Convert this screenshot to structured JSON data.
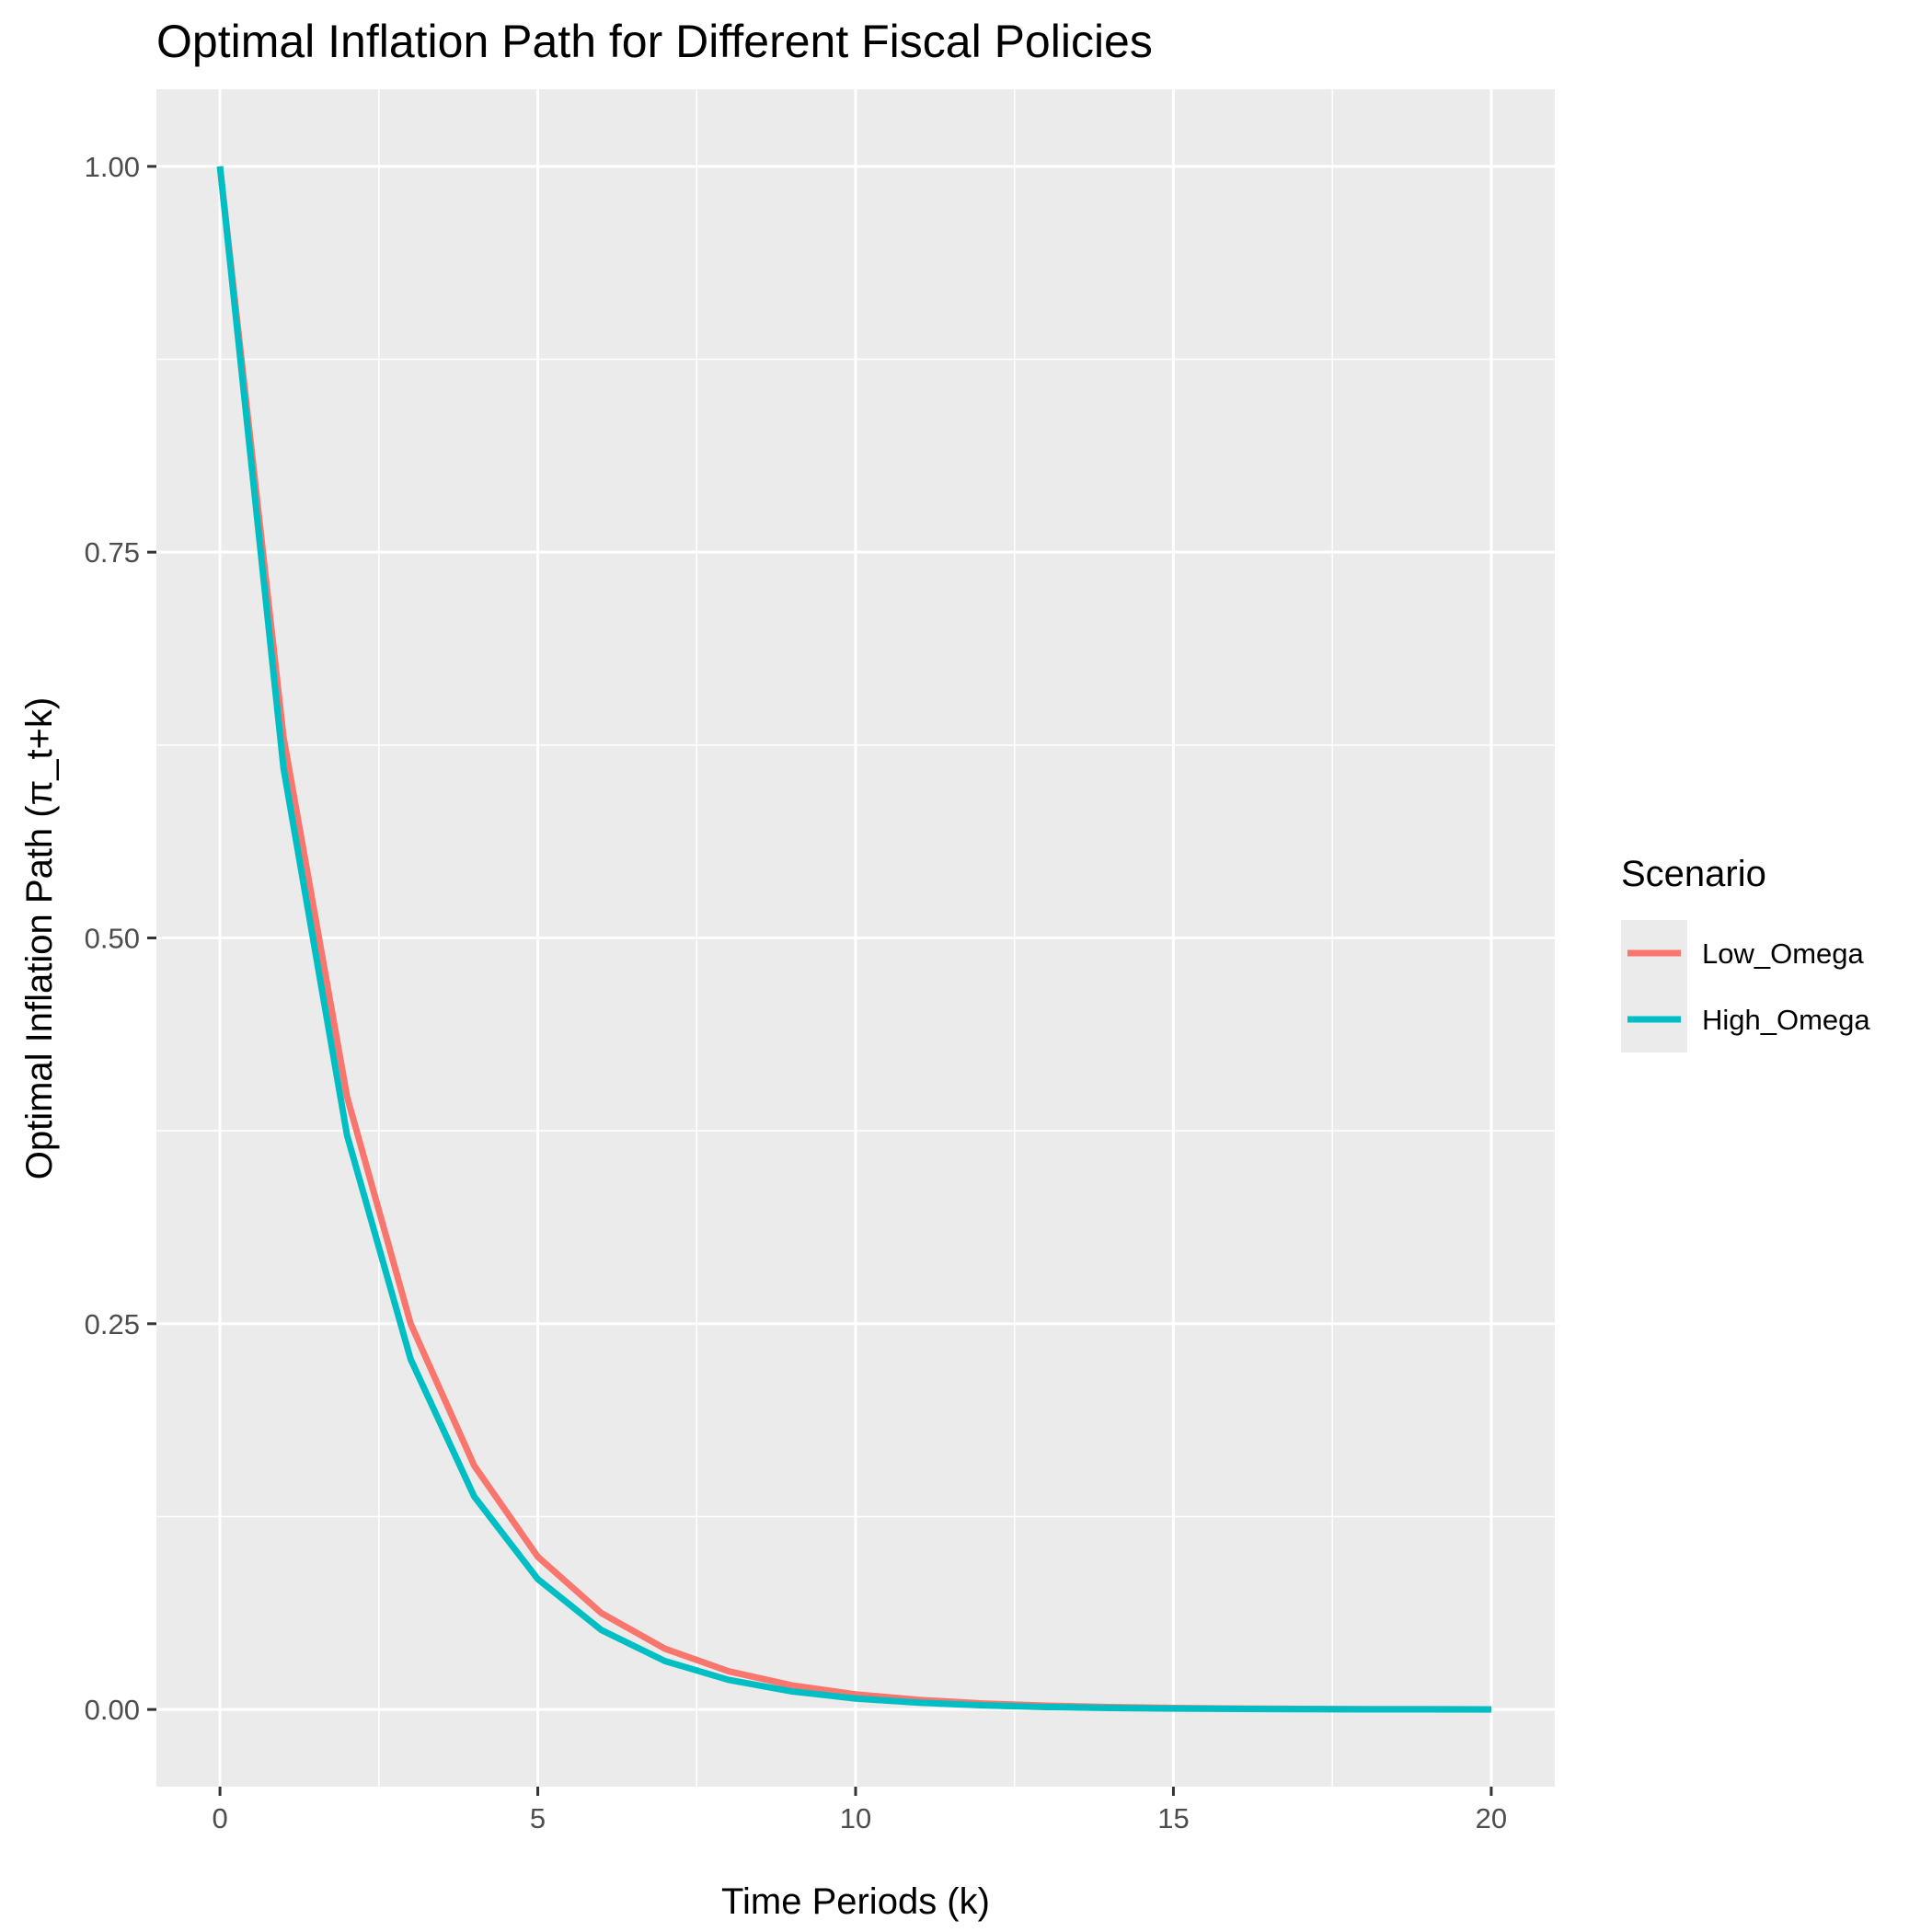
{
  "chart_data": {
    "type": "line",
    "title": "Optimal Inflation Path for Different Fiscal Policies",
    "xlabel": "Time Periods (k)",
    "ylabel": "Optimal Inflation Path (π_t+k)",
    "xlim": [
      -1,
      21
    ],
    "ylim": [
      -0.05,
      1.05
    ],
    "x_ticks": [
      0,
      5,
      10,
      15,
      20
    ],
    "x_tick_labels": [
      "0",
      "5",
      "10",
      "15",
      "20"
    ],
    "y_ticks": [
      0,
      0.25,
      0.5,
      0.75,
      1.0
    ],
    "y_tick_labels": [
      "0.00",
      "0.25",
      "0.50",
      "0.75",
      "1.00"
    ],
    "grid": true,
    "legend": {
      "title": "Scenario",
      "placement": "right"
    },
    "x": [
      0,
      1,
      2,
      3,
      4,
      5,
      6,
      7,
      8,
      9,
      10,
      11,
      12,
      13,
      14,
      15,
      16,
      17,
      18,
      19,
      20
    ],
    "series": [
      {
        "name": "Low_Omega",
        "color": "#F8766D",
        "values": [
          1.0,
          0.63,
          0.397,
          0.25,
          0.158,
          0.099,
          0.0625,
          0.0394,
          0.0248,
          0.0156,
          0.0098,
          0.0062,
          0.0039,
          0.0025,
          0.0016,
          0.001,
          0.0006,
          0.0004,
          0.0002,
          0.0002,
          0.0001
        ]
      },
      {
        "name": "High_Omega",
        "color": "#00BFC4",
        "values": [
          1.0,
          0.61,
          0.372,
          0.227,
          0.138,
          0.0845,
          0.0515,
          0.0314,
          0.0192,
          0.0117,
          0.0071,
          0.0044,
          0.0027,
          0.0016,
          0.001,
          0.0006,
          0.0004,
          0.0002,
          0.0001,
          0.0001,
          0.0
        ]
      }
    ]
  }
}
